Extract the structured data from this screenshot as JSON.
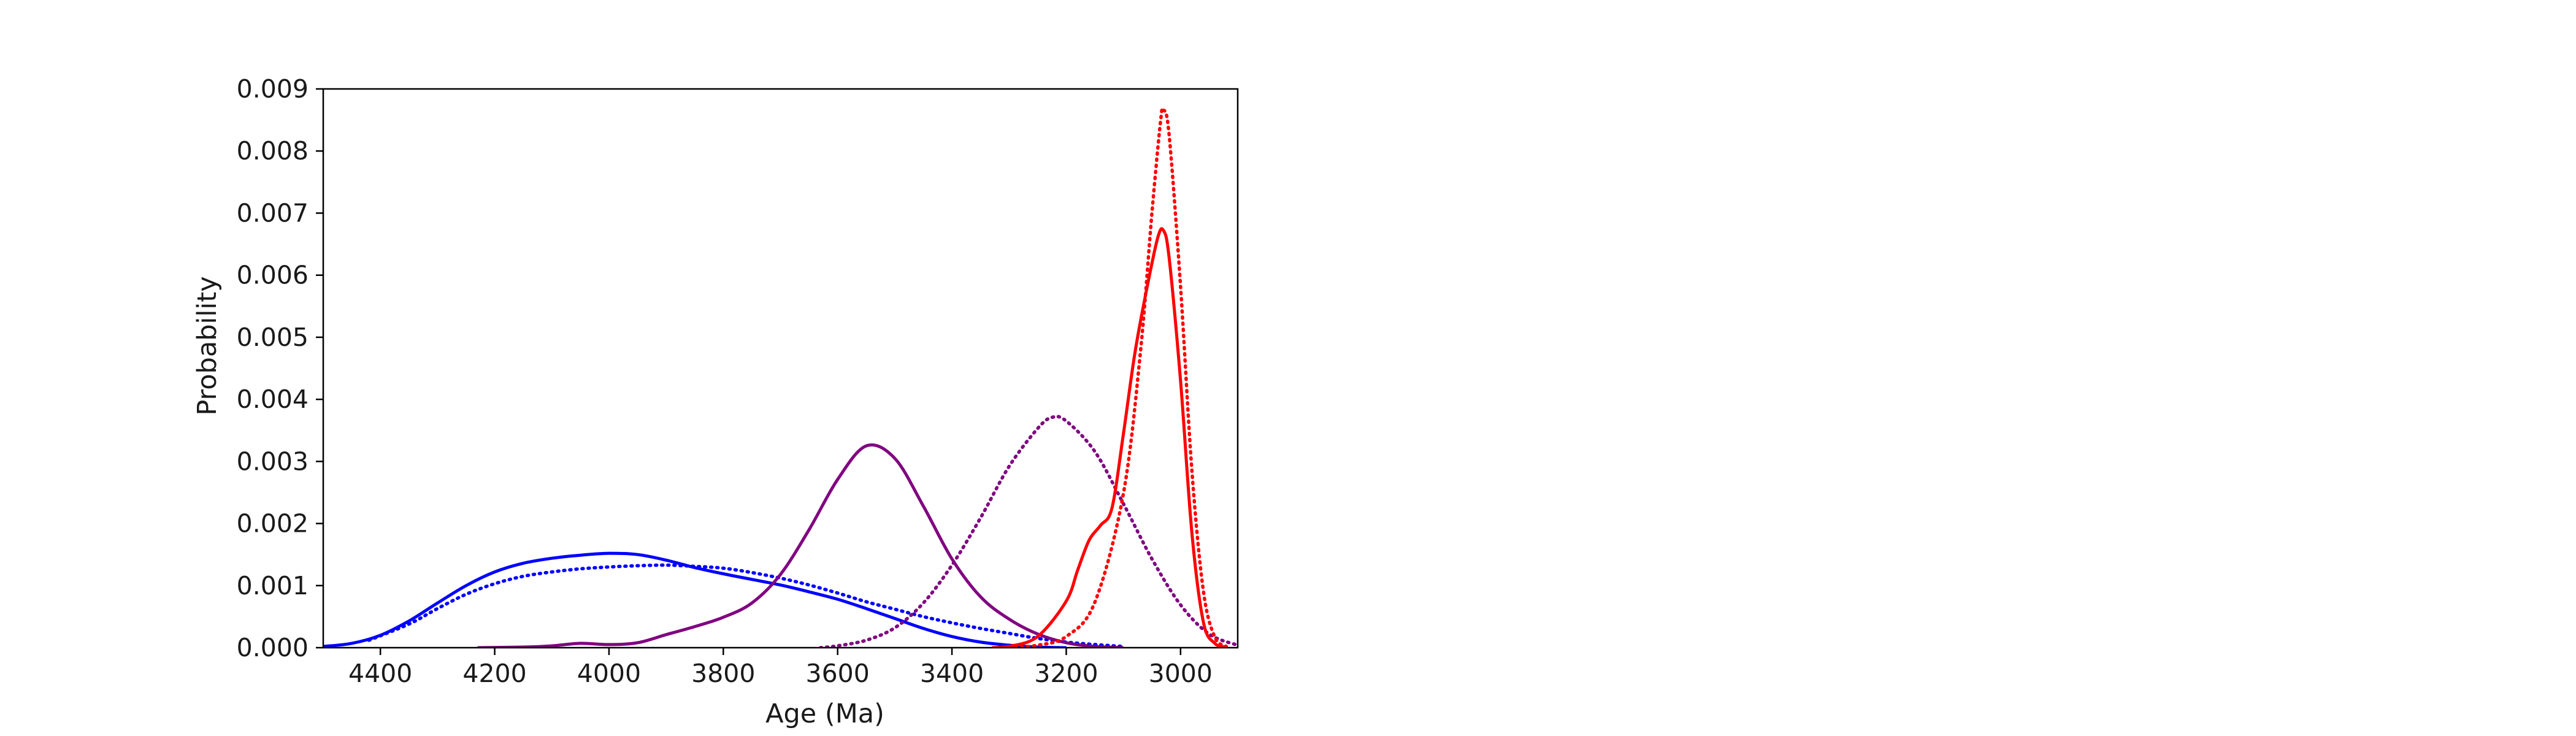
{
  "chart_data": {
    "type": "line",
    "title": "",
    "xlabel": "Age (Ma)",
    "ylabel": "Probability",
    "xlim": [
      4500,
      2900
    ],
    "ylim": [
      0,
      0.009
    ],
    "x_reversed": true,
    "grid": false,
    "legend": "none",
    "x_ticks": [
      4400,
      4200,
      4000,
      3800,
      3600,
      3400,
      3200,
      3000
    ],
    "x_tick_labels": [
      "4400",
      "4200",
      "4000",
      "3800",
      "3600",
      "3400",
      "3200",
      "3000"
    ],
    "y_ticks": [
      0,
      0.001,
      0.002,
      0.003,
      0.004,
      0.005,
      0.006,
      0.007,
      0.008,
      0.009
    ],
    "y_tick_labels": [
      "0.000",
      "0.001",
      "0.002",
      "0.003",
      "0.004",
      "0.005",
      "0.006",
      "0.007",
      "0.008",
      "0.009"
    ],
    "series": [
      {
        "color": "#0000ff",
        "style": "solid",
        "points": [
          [
            4500,
            2e-05
          ],
          [
            4450,
            7e-05
          ],
          [
            4400,
            0.0002
          ],
          [
            4350,
            0.00043
          ],
          [
            4300,
            0.00072
          ],
          [
            4250,
            0.001
          ],
          [
            4200,
            0.00122
          ],
          [
            4150,
            0.00136
          ],
          [
            4100,
            0.00144
          ],
          [
            4050,
            0.00149
          ],
          [
            4000,
            0.00152
          ],
          [
            3950,
            0.0015
          ],
          [
            3900,
            0.00141
          ],
          [
            3850,
            0.00129
          ],
          [
            3800,
            0.00119
          ],
          [
            3750,
            0.0011
          ],
          [
            3700,
            0.00101
          ],
          [
            3650,
            0.0009
          ],
          [
            3600,
            0.00078
          ],
          [
            3550,
            0.00063
          ],
          [
            3500,
            0.00047
          ],
          [
            3450,
            0.00031
          ],
          [
            3400,
            0.00018
          ],
          [
            3350,
            9e-05
          ],
          [
            3300,
            4e-05
          ],
          [
            3250,
            1e-05
          ],
          [
            3200,
            0
          ]
        ]
      },
      {
        "color": "#0000ff",
        "style": "dotted",
        "points": [
          [
            4420,
            0.00012
          ],
          [
            4350,
            0.00038
          ],
          [
            4300,
            0.00063
          ],
          [
            4250,
            0.00086
          ],
          [
            4200,
            0.00103
          ],
          [
            4150,
            0.00115
          ],
          [
            4100,
            0.00122
          ],
          [
            4050,
            0.00127
          ],
          [
            4000,
            0.0013
          ],
          [
            3950,
            0.00132
          ],
          [
            3900,
            0.00133
          ],
          [
            3850,
            0.00131
          ],
          [
            3800,
            0.00128
          ],
          [
            3750,
            0.00121
          ],
          [
            3700,
            0.00112
          ],
          [
            3650,
            0.00101
          ],
          [
            3600,
            0.00088
          ],
          [
            3550,
            0.00074
          ],
          [
            3500,
            0.00062
          ],
          [
            3450,
            0.0005
          ],
          [
            3400,
            0.0004
          ],
          [
            3350,
            0.00031
          ],
          [
            3300,
            0.00023
          ],
          [
            3250,
            0.00015
          ],
          [
            3200,
            9e-05
          ],
          [
            3150,
            5e-05
          ],
          [
            3100,
            2e-05
          ]
        ]
      },
      {
        "color": "#800080",
        "style": "solid",
        "points": [
          [
            4230,
            0
          ],
          [
            4150,
            1e-05
          ],
          [
            4100,
            3e-05
          ],
          [
            4050,
            7e-05
          ],
          [
            4000,
            5e-05
          ],
          [
            3950,
            8e-05
          ],
          [
            3900,
            0.00021
          ],
          [
            3850,
            0.00034
          ],
          [
            3800,
            0.00049
          ],
          [
            3750,
            0.00072
          ],
          [
            3700,
            0.00118
          ],
          [
            3650,
            0.0019
          ],
          [
            3600,
            0.00271
          ],
          [
            3550,
            0.00325
          ],
          [
            3500,
            0.00305
          ],
          [
            3450,
            0.00228
          ],
          [
            3400,
            0.00143
          ],
          [
            3350,
            0.00082
          ],
          [
            3300,
            0.00046
          ],
          [
            3250,
            0.00022
          ],
          [
            3200,
            8e-05
          ],
          [
            3150,
            2e-05
          ],
          [
            3100,
            0
          ]
        ]
      },
      {
        "color": "#800080",
        "style": "dotted",
        "points": [
          [
            3630,
            0
          ],
          [
            3600,
            3e-05
          ],
          [
            3550,
            0.00012
          ],
          [
            3500,
            0.00032
          ],
          [
            3450,
            0.00072
          ],
          [
            3400,
            0.00133
          ],
          [
            3350,
            0.00209
          ],
          [
            3300,
            0.00292
          ],
          [
            3250,
            0.00353
          ],
          [
            3225,
            0.00371
          ],
          [
            3200,
            0.00365
          ],
          [
            3150,
            0.00316
          ],
          [
            3100,
            0.00232
          ],
          [
            3050,
            0.00143
          ],
          [
            3000,
            0.00069
          ],
          [
            2950,
            0.00022
          ],
          [
            2900,
            4e-05
          ]
        ]
      },
      {
        "color": "#ff0000",
        "style": "solid",
        "points": [
          [
            3330,
            0
          ],
          [
            3300,
            2e-05
          ],
          [
            3250,
            0.00018
          ],
          [
            3200,
            0.00075
          ],
          [
            3180,
            0.00125
          ],
          [
            3160,
            0.00173
          ],
          [
            3140,
            0.00197
          ],
          [
            3120,
            0.00225
          ],
          [
            3100,
            0.00344
          ],
          [
            3080,
            0.00474
          ],
          [
            3060,
            0.00574
          ],
          [
            3040,
            0.0066
          ],
          [
            3030,
            0.00672
          ],
          [
            3020,
            0.00628
          ],
          [
            3000,
            0.0043
          ],
          [
            2980,
            0.00183
          ],
          [
            2960,
            0.00041
          ],
          [
            2940,
            7e-05
          ],
          [
            2920,
            1e-05
          ]
        ]
      },
      {
        "color": "#ff0000",
        "style": "dotted",
        "points": [
          [
            3300,
            0
          ],
          [
            3250,
            4e-05
          ],
          [
            3200,
            0.00018
          ],
          [
            3150,
            0.00073
          ],
          [
            3100,
            0.00248
          ],
          [
            3070,
            0.00478
          ],
          [
            3050,
            0.00701
          ],
          [
            3035,
            0.00848
          ],
          [
            3030,
            0.00866
          ],
          [
            3020,
            0.00826
          ],
          [
            3000,
            0.00582
          ],
          [
            2980,
            0.00283
          ],
          [
            2960,
            0.00091
          ],
          [
            2940,
            0.00017
          ],
          [
            2920,
            2e-05
          ]
        ]
      }
    ]
  }
}
